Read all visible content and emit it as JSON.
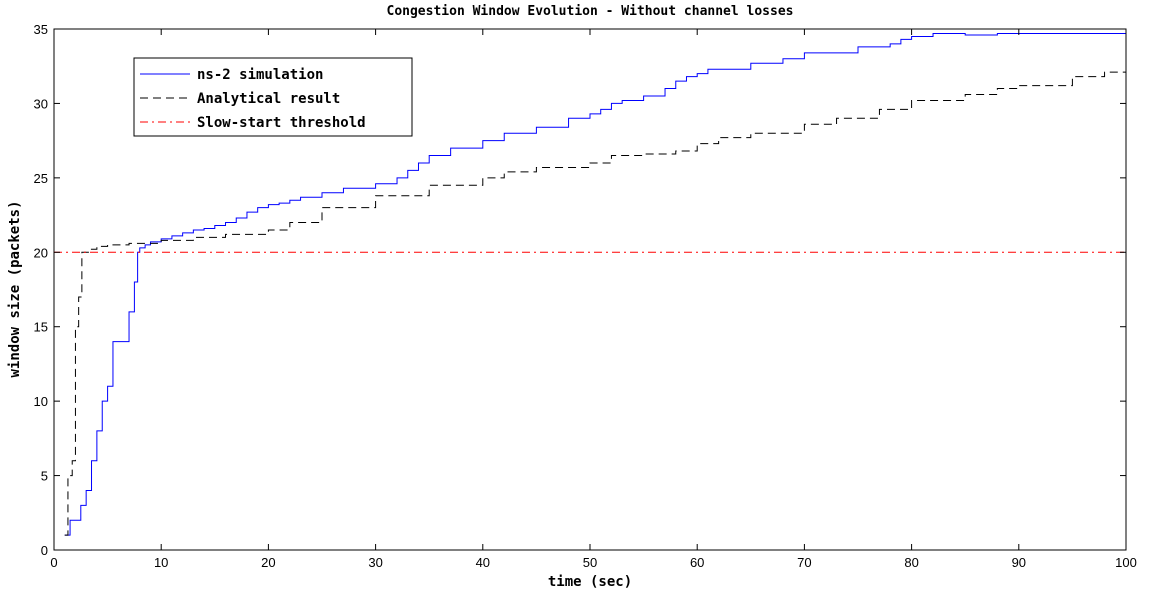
{
  "chart_data": {
    "type": "line",
    "title": "Congestion Window Evolution - Without channel losses",
    "xlabel": "time (sec)",
    "ylabel": "window size (packets)",
    "xlim": [
      0,
      100
    ],
    "ylim": [
      0,
      35
    ],
    "xticks": [
      0,
      10,
      20,
      30,
      40,
      50,
      60,
      70,
      80,
      90,
      100
    ],
    "yticks": [
      0,
      5,
      10,
      15,
      20,
      25,
      30,
      35
    ],
    "grid": false,
    "legend_position": "top-left",
    "series": [
      {
        "name": "ns-2 simulation",
        "color": "#0000ff",
        "style": "solid",
        "step": true,
        "x": [
          1.0,
          1.5,
          2.5,
          3.0,
          3.5,
          4.0,
          4.5,
          5.0,
          5.5,
          6.0,
          7.0,
          7.5,
          7.8,
          8.0,
          8.5,
          9.0,
          10.0,
          11.0,
          12.0,
          13.0,
          14.0,
          15.0,
          16.0,
          17.0,
          18.0,
          19.0,
          20.0,
          21.0,
          22.0,
          23.0,
          25.0,
          27.0,
          30.0,
          32.0,
          33.0,
          34.0,
          35.0,
          37.0,
          40.0,
          42.0,
          45.0,
          48.0,
          50.0,
          51.0,
          52.0,
          53.0,
          55.0,
          57.0,
          58.0,
          59.0,
          60.0,
          61.0,
          65.0,
          68.0,
          70.0,
          75.0,
          78.0,
          79.0,
          80.0,
          82.0,
          85.0,
          88.0,
          90.0,
          92.0,
          95.0,
          98.0,
          99.0,
          100.0
        ],
        "y": [
          1,
          2,
          3,
          4,
          6,
          8,
          10,
          11,
          14,
          14,
          16,
          18,
          20,
          20.3,
          20.5,
          20.7,
          20.9,
          21.1,
          21.3,
          21.5,
          21.6,
          21.8,
          22.0,
          22.3,
          22.7,
          23.0,
          23.2,
          23.3,
          23.5,
          23.7,
          24.0,
          24.3,
          24.6,
          25.0,
          25.5,
          26.0,
          26.5,
          27.0,
          27.5,
          28.0,
          28.4,
          29.0,
          29.3,
          29.6,
          30.0,
          30.2,
          30.5,
          31.0,
          31.5,
          31.8,
          32.0,
          32.3,
          32.7,
          33.0,
          33.4,
          33.8,
          34.0,
          34.3,
          34.5,
          34.7,
          34.6,
          34.7,
          34.7,
          34.7,
          34.7,
          34.7,
          34.7,
          34.7
        ]
      },
      {
        "name": "Analytical result",
        "color": "#000000",
        "style": "dashed",
        "step": true,
        "x": [
          1.0,
          1.3,
          1.7,
          2.0,
          2.3,
          2.6,
          3.0,
          3.3,
          4.0,
          5.0,
          7.0,
          10.0,
          13.0,
          16.0,
          20.0,
          22.0,
          25.0,
          30.0,
          35.0,
          40.0,
          42.0,
          45.0,
          50.0,
          52.0,
          55.0,
          58.0,
          60.0,
          62.0,
          65.0,
          70.0,
          73.0,
          77.0,
          80.0,
          85.0,
          88.0,
          90.0,
          95.0,
          98.0,
          100.0
        ],
        "y": [
          1,
          5,
          6,
          15,
          17,
          20,
          20,
          20.2,
          20.4,
          20.5,
          20.6,
          20.8,
          21.0,
          21.2,
          21.5,
          22.0,
          23.0,
          23.8,
          24.5,
          25.0,
          25.4,
          25.7,
          26.0,
          26.5,
          26.6,
          26.8,
          27.3,
          27.7,
          28.0,
          28.6,
          29.0,
          29.6,
          30.2,
          30.6,
          31.0,
          31.2,
          31.8,
          32.1,
          32.5
        ]
      },
      {
        "name": "Slow-start threshold",
        "color": "#ff0000",
        "style": "dashdot",
        "step": false,
        "x": [
          0,
          100
        ],
        "y": [
          20,
          20
        ]
      }
    ]
  }
}
